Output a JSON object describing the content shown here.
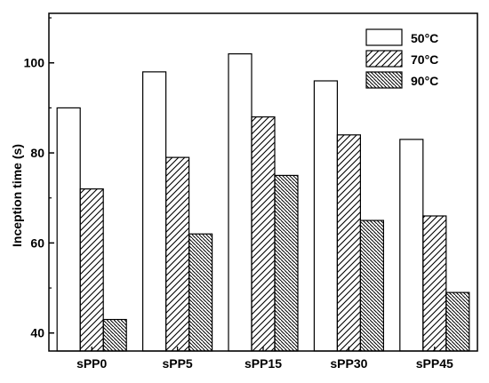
{
  "chart_data": {
    "type": "bar",
    "title": "",
    "xlabel": "",
    "ylabel": "Inception time (s)",
    "ylim": [
      36,
      111
    ],
    "yticks": [
      40,
      60,
      80,
      100
    ],
    "categories": [
      "sPP0",
      "sPP5",
      "sPP15",
      "sPP30",
      "sPP45"
    ],
    "series": [
      {
        "name": "50°C",
        "values": [
          90,
          98,
          102,
          96,
          83
        ],
        "pattern": "none"
      },
      {
        "name": "70°C",
        "values": [
          72,
          79,
          88,
          84,
          66
        ],
        "pattern": "forward-diagonal"
      },
      {
        "name": "90°C",
        "values": [
          43,
          62,
          75,
          65,
          49
        ],
        "pattern": "backward-diagonal-dense"
      }
    ],
    "legend_position": "top-right",
    "grid": false,
    "bar_fill": "#ffffff",
    "bar_stroke": "#000000"
  }
}
